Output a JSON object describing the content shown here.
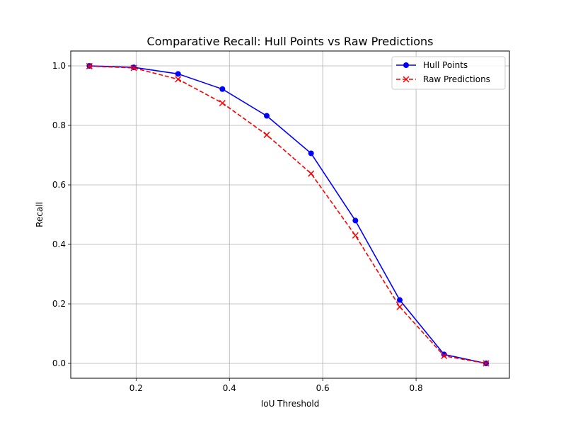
{
  "chart_data": {
    "type": "line",
    "title": "Comparative Recall: Hull Points vs Raw Predictions",
    "xlabel": "IoU Threshold",
    "ylabel": "Recall",
    "xlim": [
      0.06,
      1.0
    ],
    "ylim": [
      -0.05,
      1.05
    ],
    "xticks": [
      "0.2",
      "0.4",
      "0.6",
      "0.8"
    ],
    "yticks": [
      "0.0",
      "0.2",
      "0.4",
      "0.6",
      "0.8",
      "1.0"
    ],
    "grid": true,
    "legend_position": "top-right",
    "x": [
      0.1,
      0.195,
      0.29,
      0.385,
      0.48,
      0.575,
      0.67,
      0.765,
      0.86,
      0.95
    ],
    "series": [
      {
        "name": "Hull Points",
        "color": "#0000ff",
        "line_style": "solid",
        "marker": "circle",
        "values": [
          1.0,
          0.995,
          0.973,
          0.922,
          0.832,
          0.706,
          0.48,
          0.213,
          0.03,
          0.0
        ]
      },
      {
        "name": "Raw Predictions",
        "color": "#ff0000",
        "line_style": "dashed",
        "marker": "x",
        "values": [
          0.999,
          0.993,
          0.955,
          0.875,
          0.768,
          0.638,
          0.43,
          0.19,
          0.025,
          0.0
        ]
      }
    ]
  }
}
